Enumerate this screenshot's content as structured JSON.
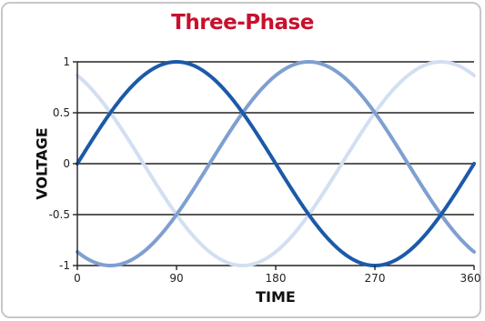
{
  "chart_data": {
    "type": "line",
    "title": "Three-Phase",
    "xlabel": "TIME",
    "ylabel": "VOLTAGE",
    "xlim": [
      0,
      360
    ],
    "ylim": [
      -1,
      1
    ],
    "x_ticks": [
      0,
      90,
      180,
      270,
      360
    ],
    "y_ticks": [
      1,
      0.5,
      0,
      -0.5,
      -1
    ],
    "x_tick_labels": [
      "0",
      "90",
      "180",
      "270",
      "360"
    ],
    "y_tick_labels": [
      "1",
      "0.5",
      "0",
      "-0.5",
      "-1"
    ],
    "grid": "horizontal",
    "series": [
      {
        "phase_deg": 0,
        "color": "#1b5aa8",
        "function": "sin(t + phase)"
      },
      {
        "phase_deg": -120,
        "color": "#7f9fd1",
        "function": "sin(t + phase)"
      },
      {
        "phase_deg": 120,
        "color": "#d3dff1",
        "function": "sin(t + phase)"
      }
    ]
  },
  "colors": {
    "title": "#c8102e",
    "grid": "#222222",
    "border": "#c7c7c7"
  }
}
